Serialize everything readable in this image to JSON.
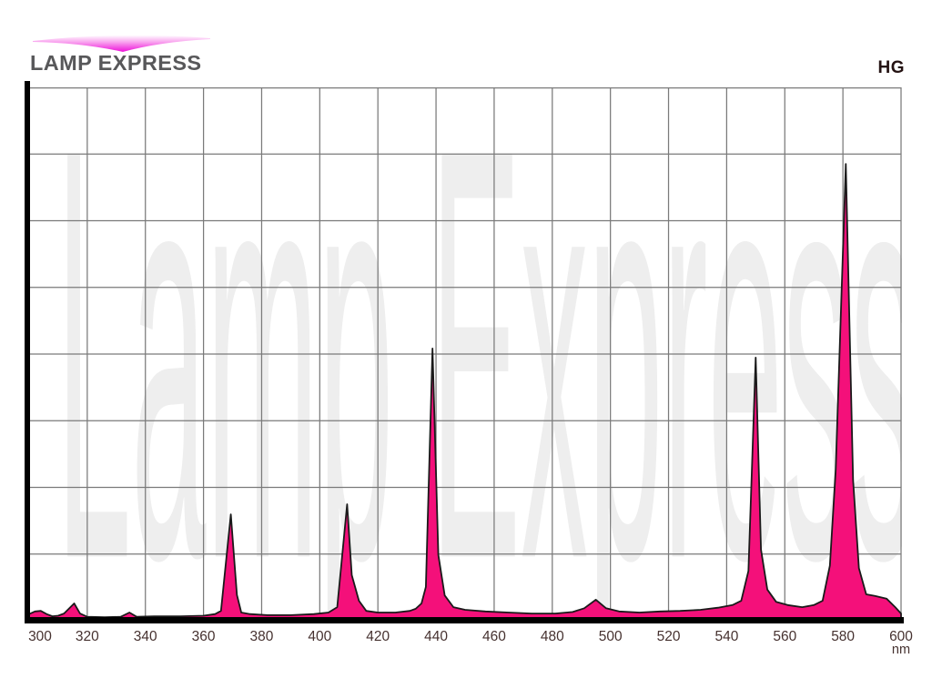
{
  "header": {
    "brand": "LAMP EXPRESS",
    "lamp_type": "HG"
  },
  "watermark_text": "Lamp Express",
  "colors": {
    "spectrum_fill": "#F4107A",
    "spectrum_outline": "#1A1A1A",
    "grid": "#7A7A7A",
    "axis": "#000000",
    "tick_label": "#463230",
    "brand_text": "#58585A",
    "watermark": "#EEEEEE",
    "swoosh_magenta": "#EE12D9"
  },
  "chart_data": {
    "type": "area",
    "title": "",
    "xlabel": "",
    "ylabel": "",
    "x_unit": "nm",
    "xlim": [
      300,
      600
    ],
    "x_ticks": [
      300,
      320,
      340,
      360,
      380,
      400,
      420,
      440,
      460,
      480,
      500,
      520,
      540,
      560,
      580,
      600
    ],
    "grid": {
      "visible": true,
      "columns": 15,
      "rows": 8
    },
    "ylim_pct": [
      0,
      100
    ],
    "peaks_nm": [
      315.5,
      369.4,
      409.4,
      438.8,
      495,
      550,
      581
    ],
    "points_nm_intensity_pct": [
      [
        300,
        0.9
      ],
      [
        302,
        1.4
      ],
      [
        304,
        1.5
      ],
      [
        306,
        0.9
      ],
      [
        308,
        0.5
      ],
      [
        310,
        0.6
      ],
      [
        312,
        1.0
      ],
      [
        315.5,
        2.9
      ],
      [
        317.5,
        1.0
      ],
      [
        320,
        0.4
      ],
      [
        326,
        0.3
      ],
      [
        331.5,
        0.4
      ],
      [
        334.5,
        1.2
      ],
      [
        337,
        0.4
      ],
      [
        343,
        0.5
      ],
      [
        352,
        0.5
      ],
      [
        360,
        0.6
      ],
      [
        364,
        0.9
      ],
      [
        366,
        1.5
      ],
      [
        369.4,
        19.6
      ],
      [
        371.5,
        4.5
      ],
      [
        373,
        1.2
      ],
      [
        376,
        0.9
      ],
      [
        382,
        0.7
      ],
      [
        390,
        0.7
      ],
      [
        398,
        0.9
      ],
      [
        403,
        1.2
      ],
      [
        406,
        2.2
      ],
      [
        409.4,
        21.5
      ],
      [
        411,
        8.2
      ],
      [
        413.5,
        3.4
      ],
      [
        416,
        1.5
      ],
      [
        420,
        1.2
      ],
      [
        426,
        1.2
      ],
      [
        431,
        1.5
      ],
      [
        433,
        1.9
      ],
      [
        435,
        2.9
      ],
      [
        436.5,
        6.0
      ],
      [
        438.8,
        50.7
      ],
      [
        440.8,
        12.0
      ],
      [
        443,
        4.4
      ],
      [
        446,
        2.2
      ],
      [
        450,
        1.7
      ],
      [
        457,
        1.4
      ],
      [
        465,
        1.2
      ],
      [
        473,
        1.0
      ],
      [
        481,
        1.0
      ],
      [
        487,
        1.3
      ],
      [
        491,
        2.0
      ],
      [
        495,
        3.6
      ],
      [
        498.5,
        2.0
      ],
      [
        503,
        1.4
      ],
      [
        510,
        1.2
      ],
      [
        517,
        1.4
      ],
      [
        524,
        1.5
      ],
      [
        531,
        1.7
      ],
      [
        537,
        2.1
      ],
      [
        542,
        2.6
      ],
      [
        545,
        3.4
      ],
      [
        547.5,
        9.0
      ],
      [
        550,
        49.0
      ],
      [
        551.8,
        13.0
      ],
      [
        554,
        5.5
      ],
      [
        557,
        3.2
      ],
      [
        561,
        2.6
      ],
      [
        566,
        2.2
      ],
      [
        570,
        2.6
      ],
      [
        573,
        3.4
      ],
      [
        575.5,
        10.0
      ],
      [
        577.5,
        28.0
      ],
      [
        581,
        85.3
      ],
      [
        583.5,
        26.0
      ],
      [
        585.5,
        9.5
      ],
      [
        588,
        4.6
      ],
      [
        591,
        4.3
      ],
      [
        595,
        3.8
      ],
      [
        598,
        2.2
      ],
      [
        600,
        1.0
      ]
    ]
  }
}
